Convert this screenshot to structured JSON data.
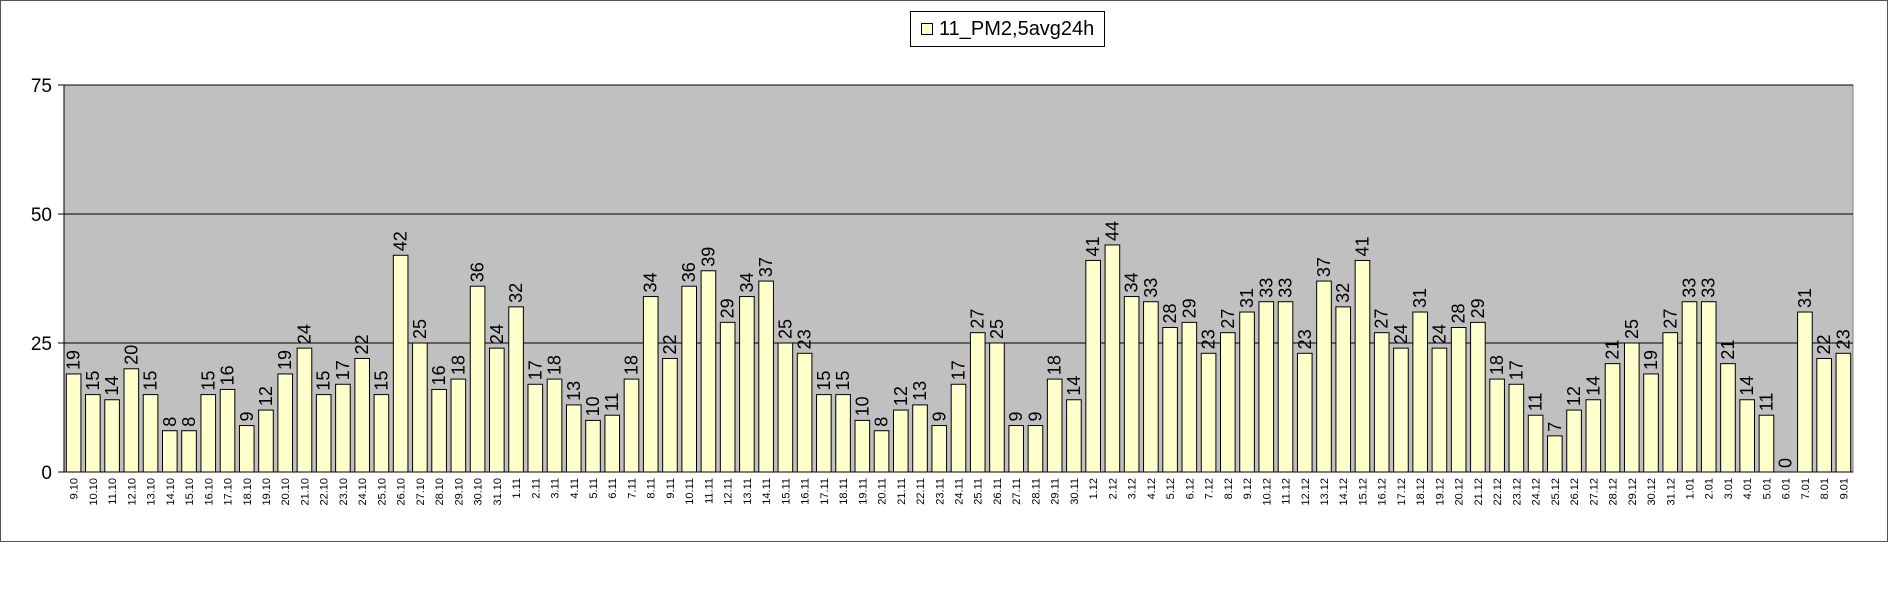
{
  "chart_data": {
    "type": "bar",
    "title": "",
    "xlabel": "",
    "ylabel": "",
    "ylim": [
      0,
      75
    ],
    "yticks": [
      0,
      25,
      50,
      75
    ],
    "grid": true,
    "legend": "top-center",
    "colors": {
      "bar": "#ffffcc",
      "bar_stroke": "#000000",
      "plot_bg": "#c0c0c0",
      "grid": "#000000"
    },
    "series": [
      {
        "name": "11_PM2,5avg24h",
        "values": [
          19,
          15,
          14,
          20,
          15,
          8,
          8,
          15,
          16,
          9,
          12,
          19,
          24,
          15,
          17,
          22,
          15,
          42,
          25,
          16,
          18,
          36,
          24,
          32,
          17,
          18,
          13,
          10,
          11,
          18,
          34,
          22,
          36,
          39,
          29,
          34,
          37,
          25,
          23,
          15,
          15,
          10,
          8,
          12,
          13,
          9,
          17,
          27,
          25,
          9,
          9,
          18,
          14,
          41,
          44,
          34,
          33,
          28,
          29,
          23,
          27,
          31,
          33,
          33,
          23,
          37,
          32,
          41,
          27,
          24,
          31,
          24,
          28,
          29,
          18,
          17,
          11,
          7,
          12,
          14,
          21,
          25,
          19,
          27,
          33,
          33,
          21,
          14,
          11,
          0,
          31,
          22,
          23
        ]
      }
    ],
    "categories": [
      "9.10",
      "10.10",
      "11.10",
      "12.10",
      "13.10",
      "14.10",
      "15.10",
      "16.10",
      "17.10",
      "18.10",
      "19.10",
      "20.10",
      "21.10",
      "22.10",
      "23.10",
      "24.10",
      "25.10",
      "26.10",
      "27.10",
      "28.10",
      "29.10",
      "30.10",
      "31.10",
      "1.11",
      "2.11",
      "3.11",
      "4.11",
      "5.11",
      "6.11",
      "7.11",
      "8.11",
      "9.11",
      "10.11",
      "11.11",
      "12.11",
      "13.11",
      "14.11",
      "15.11",
      "16.11",
      "17.11",
      "18.11",
      "19.11",
      "20.11",
      "21.11",
      "22.11",
      "23.11",
      "24.11",
      "25.11",
      "26.11",
      "27.11",
      "28.11",
      "29.11",
      "30.11",
      "1.12",
      "2.12",
      "3.12",
      "4.12",
      "5.12",
      "6.12",
      "7.12",
      "8.12",
      "9.12",
      "10.12",
      "11.12",
      "12.12",
      "13.12",
      "14.12",
      "15.12",
      "16.12",
      "17.12",
      "18.12",
      "19.12",
      "20.12",
      "21.12",
      "22.12",
      "23.12",
      "24.12",
      "25.12",
      "26.12",
      "27.12",
      "28.12",
      "29.12",
      "30.12",
      "31.12",
      "1.01",
      "2.01",
      "3.01",
      "4.01",
      "5.01",
      "6.01",
      "7.01",
      "8.01",
      "9.01"
    ]
  }
}
